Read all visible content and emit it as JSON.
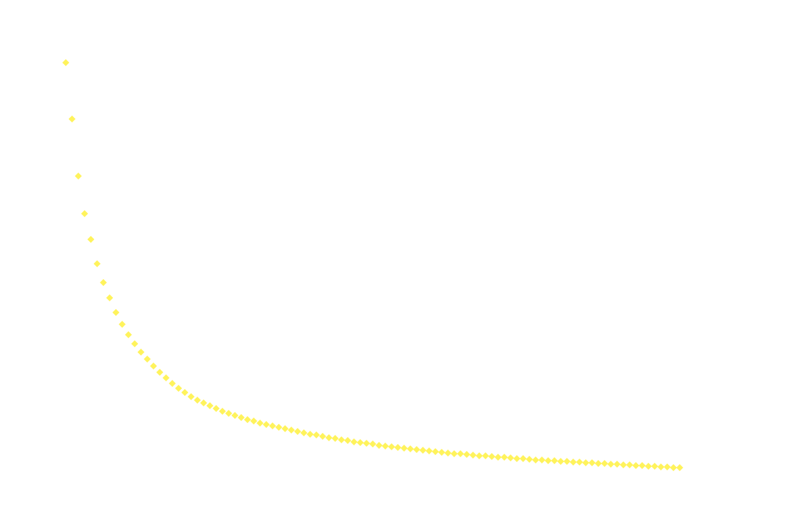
{
  "chart_data": {
    "type": "scatter",
    "marker": "diamond",
    "color": "#fff35c",
    "x": [
      1,
      2,
      3,
      4,
      5,
      6,
      7,
      8,
      9,
      10,
      11,
      12,
      13,
      14,
      15,
      16,
      17,
      18,
      19,
      20,
      21,
      22,
      23,
      24,
      25,
      26,
      27,
      28,
      29,
      30,
      31,
      32,
      33,
      34,
      35,
      36,
      37,
      38,
      39,
      40,
      41,
      42,
      43,
      44,
      45,
      46,
      47,
      48,
      49,
      50,
      51,
      52,
      53,
      54,
      55,
      56,
      57,
      58,
      59,
      60,
      61,
      62,
      63,
      64,
      65,
      66,
      67,
      68,
      69,
      70,
      71,
      72,
      73,
      74,
      75,
      76,
      77,
      78,
      79,
      80,
      81,
      82,
      83,
      84,
      85,
      86,
      87,
      88,
      89,
      90,
      91,
      92,
      93,
      94,
      95,
      96,
      97,
      98,
      99
    ],
    "values": [
      61.0,
      52.9,
      44.7,
      39.3,
      35.6,
      32.1,
      29.4,
      27.2,
      25.1,
      23.4,
      21.9,
      20.6,
      19.4,
      18.4,
      17.4,
      16.5,
      15.7,
      14.9,
      14.2,
      13.6,
      13.0,
      12.5,
      12.1,
      11.7,
      11.3,
      10.9,
      10.6,
      10.3,
      10.0,
      9.7,
      9.5,
      9.2,
      9.0,
      8.8,
      8.6,
      8.4,
      8.2,
      8.0,
      7.8,
      7.6,
      7.5,
      7.3,
      7.1,
      7.0,
      6.8,
      6.7,
      6.5,
      6.4,
      6.3,
      6.2,
      6.0,
      5.9,
      5.8,
      5.7,
      5.6,
      5.5,
      5.4,
      5.3,
      5.2,
      5.1,
      5.0,
      4.9,
      4.8,
      4.8,
      4.7,
      4.6,
      4.5,
      4.5,
      4.4,
      4.3,
      4.3,
      4.2,
      4.1,
      4.1,
      4.0,
      3.9,
      3.9,
      3.8,
      3.8,
      3.7,
      3.7,
      3.6,
      3.6,
      3.5,
      3.5,
      3.4,
      3.4,
      3.3,
      3.3,
      3.2,
      3.2,
      3.1,
      3.1,
      3.0,
      3.0,
      2.9,
      2.9,
      2.8,
      2.8
    ],
    "xlim": [
      -9.5,
      116.6
    ],
    "ylim": [
      -5.3,
      70
    ]
  }
}
